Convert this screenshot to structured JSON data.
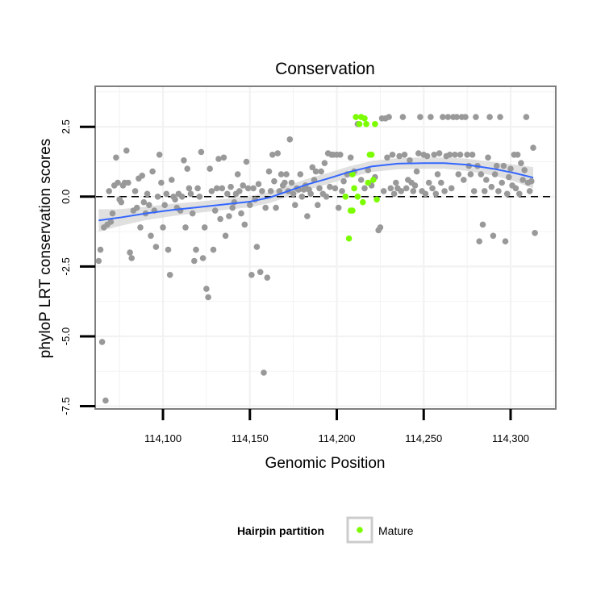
{
  "chart_data": {
    "type": "scatter",
    "title": "Conservation",
    "xlabel": "Genomic Position",
    "ylabel": "phyloP LRT conservation scores",
    "xlim": [
      114061,
      114326
    ],
    "ylim": [
      -7.6,
      3.95
    ],
    "x_ticks": [
      114100,
      114150,
      114200,
      114250,
      114300
    ],
    "x_tick_labels": [
      "114,100",
      "114,150",
      "114,200",
      "114,250",
      "114,300"
    ],
    "y_ticks": [
      -7.5,
      -5.0,
      -2.5,
      0.0,
      2.5
    ],
    "y_tick_labels": [
      "-7.5",
      "-5.0",
      "-2.5",
      "0.0",
      "2.5"
    ],
    "grid": true,
    "reference_line": {
      "y": 0,
      "style": "dashed"
    },
    "legend": {
      "title": "Hairpin partition",
      "position": "bottom",
      "entries": [
        {
          "label": "Mature",
          "color": "#7cfc00"
        }
      ]
    },
    "colors": {
      "point": "#999999",
      "mature": "#7cfc00",
      "smooth": "#3366ff",
      "ribbon": "#d3d3d3",
      "panel_border": "#7f7f7f",
      "grid": "#f2f2f2"
    },
    "series": [
      {
        "name": "",
        "color": "#999999",
        "points": [
          [
            114063,
            -2.3
          ],
          [
            114064,
            -1.9
          ],
          [
            114065,
            -5.2
          ],
          [
            114066,
            -1.1
          ],
          [
            114067,
            -7.3
          ],
          [
            114068,
            -1.0
          ],
          [
            114069,
            0.2
          ],
          [
            114070,
            -0.9
          ],
          [
            114071,
            -0.6
          ],
          [
            114072,
            0.4
          ],
          [
            114073,
            1.4
          ],
          [
            114074,
            0.5
          ],
          [
            114075,
            -0.1
          ],
          [
            114076,
            -0.2
          ],
          [
            114077,
            0.4
          ],
          [
            114078,
            0.5
          ],
          [
            114079,
            1.65
          ],
          [
            114080,
            0.5
          ],
          [
            114081,
            -2.0
          ],
          [
            114082,
            -2.2
          ],
          [
            114083,
            -0.5
          ],
          [
            114084,
            0.2
          ],
          [
            114085,
            -0.4
          ],
          [
            114086,
            0.65
          ],
          [
            114087,
            -1.1
          ],
          [
            114088,
            0.75
          ],
          [
            114089,
            -0.2
          ],
          [
            114090,
            -0.6
          ],
          [
            114091,
            0.1
          ],
          [
            114092,
            -0.3
          ],
          [
            114093,
            -1.4
          ],
          [
            114094,
            0.9
          ],
          [
            114095,
            -0.5
          ],
          [
            114096,
            -1.8
          ],
          [
            114097,
            0.0
          ],
          [
            114098,
            1.5
          ],
          [
            114099,
            0.5
          ],
          [
            114100,
            -1.1
          ],
          [
            114101,
            -0.3
          ],
          [
            114102,
            0.1
          ],
          [
            114103,
            -1.9
          ],
          [
            114104,
            -2.8
          ],
          [
            114105,
            0.6
          ],
          [
            114106,
            0.0
          ],
          [
            114107,
            -0.1
          ],
          [
            114108,
            -0.4
          ],
          [
            114109,
            0.1
          ],
          [
            114110,
            -0.5
          ],
          [
            114111,
            0.0
          ],
          [
            114112,
            1.3
          ],
          [
            114113,
            -1.1
          ],
          [
            114114,
            1.0
          ],
          [
            114115,
            0.3
          ],
          [
            114116,
            0.1
          ],
          [
            114117,
            -0.6
          ],
          [
            114118,
            -2.3
          ],
          [
            114119,
            -1.9
          ],
          [
            114120,
            0.3
          ],
          [
            114121,
            0.0
          ],
          [
            114122,
            1.6
          ],
          [
            114123,
            -2.2
          ],
          [
            114124,
            -1.1
          ],
          [
            114125,
            -3.3
          ],
          [
            114126,
            -3.6
          ],
          [
            114127,
            1.0
          ],
          [
            114128,
            0.2
          ],
          [
            114129,
            -1.9
          ],
          [
            114130,
            -0.5
          ],
          [
            114131,
            0.3
          ],
          [
            114132,
            1.35
          ],
          [
            114133,
            -0.8
          ],
          [
            114134,
            0.3
          ],
          [
            114135,
            1.4
          ],
          [
            114136,
            -1.4
          ],
          [
            114137,
            0.1
          ],
          [
            114138,
            -0.7
          ],
          [
            114139,
            0.35
          ],
          [
            114140,
            -0.4
          ],
          [
            114141,
            -0.2
          ],
          [
            114142,
            0.1
          ],
          [
            114143,
            0.8
          ],
          [
            114144,
            0.2
          ],
          [
            114145,
            -0.6
          ],
          [
            114146,
            0.4
          ],
          [
            114147,
            -1.0
          ],
          [
            114148,
            1.25
          ],
          [
            114149,
            0.3
          ],
          [
            114150,
            -0.3
          ],
          [
            114151,
            -2.8
          ],
          [
            114152,
            0.3
          ],
          [
            114153,
            -0.1
          ],
          [
            114154,
            -1.8
          ],
          [
            114155,
            0.45
          ],
          [
            114156,
            -2.7
          ],
          [
            114157,
            0.2
          ],
          [
            114158,
            -6.3
          ],
          [
            114159,
            -0.4
          ],
          [
            114160,
            -2.9
          ],
          [
            114161,
            0.9
          ],
          [
            114162,
            0.2
          ],
          [
            114163,
            1.5
          ],
          [
            114164,
            0.55
          ],
          [
            114165,
            -0.4
          ],
          [
            114166,
            1.55
          ],
          [
            114167,
            0.2
          ],
          [
            114168,
            0.8
          ],
          [
            114169,
            0.4
          ],
          [
            114170,
            0.5
          ],
          [
            114171,
            0.8
          ],
          [
            114172,
            0.2
          ],
          [
            114173,
            2.05
          ],
          [
            114174,
            0.5
          ],
          [
            114175,
            0.1
          ],
          [
            114176,
            -0.3
          ],
          [
            114177,
            0.3
          ],
          [
            114178,
            0.25
          ],
          [
            114179,
            0.8
          ],
          [
            114180,
            0.0
          ],
          [
            114181,
            0.25
          ],
          [
            114182,
            0.4
          ],
          [
            114183,
            -0.7
          ],
          [
            114184,
            0.25
          ],
          [
            114185,
            0.1
          ],
          [
            114186,
            1.05
          ],
          [
            114187,
            0.6
          ],
          [
            114188,
            0.9
          ],
          [
            114189,
            -0.3
          ],
          [
            114190,
            0.3
          ],
          [
            114191,
            0.9
          ],
          [
            114192,
            0.1
          ],
          [
            114193,
            1.2
          ],
          [
            114194,
            0.0
          ],
          [
            114195,
            1.55
          ],
          [
            114196,
            0.35
          ],
          [
            114197,
            1.5
          ],
          [
            114198,
            1.5
          ],
          [
            114199,
            0.3
          ],
          [
            114200,
            1.5
          ],
          [
            114201,
            -0.4
          ],
          [
            114202,
            1.5
          ],
          [
            114203,
            0.2
          ],
          [
            114204,
            0.55
          ],
          [
            114206,
            0.8
          ],
          [
            114208,
            1.4
          ],
          [
            114210,
            0.9
          ],
          [
            114212,
            2.6
          ],
          [
            114214,
            0.6
          ],
          [
            114216,
            0.3
          ],
          [
            114218,
            0.95
          ],
          [
            114220,
            0.4
          ],
          [
            114222,
            0.7
          ],
          [
            114224,
            -1.2
          ],
          [
            114225,
            -1.1
          ],
          [
            114226,
            2.8
          ],
          [
            114227,
            0.2
          ],
          [
            114228,
            2.8
          ],
          [
            114229,
            1.4
          ],
          [
            114230,
            2.85
          ],
          [
            114231,
            0.3
          ],
          [
            114232,
            1.5
          ],
          [
            114233,
            0.1
          ],
          [
            114234,
            0.5
          ],
          [
            114235,
            0.3
          ],
          [
            114236,
            1.45
          ],
          [
            114237,
            0.2
          ],
          [
            114238,
            2.85
          ],
          [
            114239,
            1.5
          ],
          [
            114240,
            0.3
          ],
          [
            114241,
            0.6
          ],
          [
            114242,
            1.3
          ],
          [
            114243,
            0.5
          ],
          [
            114244,
            0.2
          ],
          [
            114245,
            0.4
          ],
          [
            114246,
            0.9
          ],
          [
            114247,
            1.55
          ],
          [
            114248,
            2.85
          ],
          [
            114249,
            0.2
          ],
          [
            114250,
            1.5
          ],
          [
            114251,
            0.1
          ],
          [
            114252,
            1.45
          ],
          [
            114253,
            0.5
          ],
          [
            114254,
            2.85
          ],
          [
            114255,
            0.3
          ],
          [
            114256,
            1.5
          ],
          [
            114257,
            0.1
          ],
          [
            114258,
            0.8
          ],
          [
            114259,
            1.55
          ],
          [
            114260,
            0.5
          ],
          [
            114261,
            2.85
          ],
          [
            114262,
            0.2
          ],
          [
            114263,
            1.45
          ],
          [
            114264,
            2.85
          ],
          [
            114265,
            1.5
          ],
          [
            114266,
            0.3
          ],
          [
            114267,
            2.85
          ],
          [
            114268,
            1.5
          ],
          [
            114269,
            2.85
          ],
          [
            114270,
            0.8
          ],
          [
            114271,
            1.5
          ],
          [
            114272,
            2.85
          ],
          [
            114273,
            0.6
          ],
          [
            114274,
            2.85
          ],
          [
            114275,
            1.5
          ],
          [
            114276,
            1.1
          ],
          [
            114277,
            0.8
          ],
          [
            114278,
            1.5
          ],
          [
            114279,
            0.2
          ],
          [
            114280,
            2.85
          ],
          [
            114281,
            1.1
          ],
          [
            114282,
            -1.6
          ],
          [
            114283,
            0.8
          ],
          [
            114284,
            -1.0
          ],
          [
            114285,
            0.2
          ],
          [
            114286,
            0.6
          ],
          [
            114287,
            1.4
          ],
          [
            114288,
            2.85
          ],
          [
            114289,
            0.35
          ],
          [
            114290,
            -1.4
          ],
          [
            114291,
            0.8
          ],
          [
            114292,
            1.1
          ],
          [
            114293,
            0.2
          ],
          [
            114294,
            2.85
          ],
          [
            114295,
            0.5
          ],
          [
            114296,
            1.1
          ],
          [
            114297,
            -1.6
          ],
          [
            114298,
            0.1
          ],
          [
            114299,
            0.7
          ],
          [
            114300,
            1.0
          ],
          [
            114301,
            0.4
          ],
          [
            114302,
            1.5
          ],
          [
            114303,
            0.3
          ],
          [
            114304,
            1.5
          ],
          [
            114305,
            0.1
          ],
          [
            114306,
            1.2
          ],
          [
            114307,
            0.6
          ],
          [
            114308,
            0.95
          ],
          [
            114309,
            2.85
          ],
          [
            114310,
            0.5
          ],
          [
            114311,
            0.2
          ],
          [
            114312,
            0.55
          ],
          [
            114313,
            1.75
          ],
          [
            114314,
            -1.3
          ]
        ]
      },
      {
        "name": "Mature",
        "color": "#7cfc00",
        "points": [
          [
            114205,
            0.0
          ],
          [
            114207,
            -1.5
          ],
          [
            114208,
            -0.5
          ],
          [
            114209,
            0.8
          ],
          [
            114209,
            -0.5
          ],
          [
            114210,
            0.3
          ],
          [
            114211,
            2.85
          ],
          [
            114212,
            0.0
          ],
          [
            114213,
            2.6
          ],
          [
            114214,
            2.85
          ],
          [
            114215,
            -0.2
          ],
          [
            114216,
            2.8
          ],
          [
            114217,
            2.6
          ],
          [
            114218,
            0.5
          ],
          [
            114219,
            1.5
          ],
          [
            114220,
            1.5
          ],
          [
            114221,
            0.6
          ],
          [
            114222,
            2.6
          ],
          [
            114223,
            -0.1
          ]
        ]
      }
    ],
    "smooth_line": {
      "x": [
        114063,
        114075,
        114090,
        114105,
        114120,
        114135,
        114150,
        114162,
        114172,
        114182,
        114195,
        114207,
        114220,
        114235,
        114250,
        114262,
        114275,
        114290,
        114302,
        114313
      ],
      "y": [
        -0.85,
        -0.75,
        -0.6,
        -0.48,
        -0.38,
        -0.28,
        -0.18,
        -0.02,
        0.2,
        0.42,
        0.65,
        0.88,
        1.08,
        1.18,
        1.2,
        1.2,
        1.14,
        1.0,
        0.85,
        0.68
      ],
      "band": [
        0.4,
        0.3,
        0.24,
        0.22,
        0.2,
        0.2,
        0.2,
        0.2,
        0.2,
        0.2,
        0.2,
        0.2,
        0.2,
        0.2,
        0.2,
        0.2,
        0.22,
        0.24,
        0.3,
        0.38
      ]
    }
  }
}
